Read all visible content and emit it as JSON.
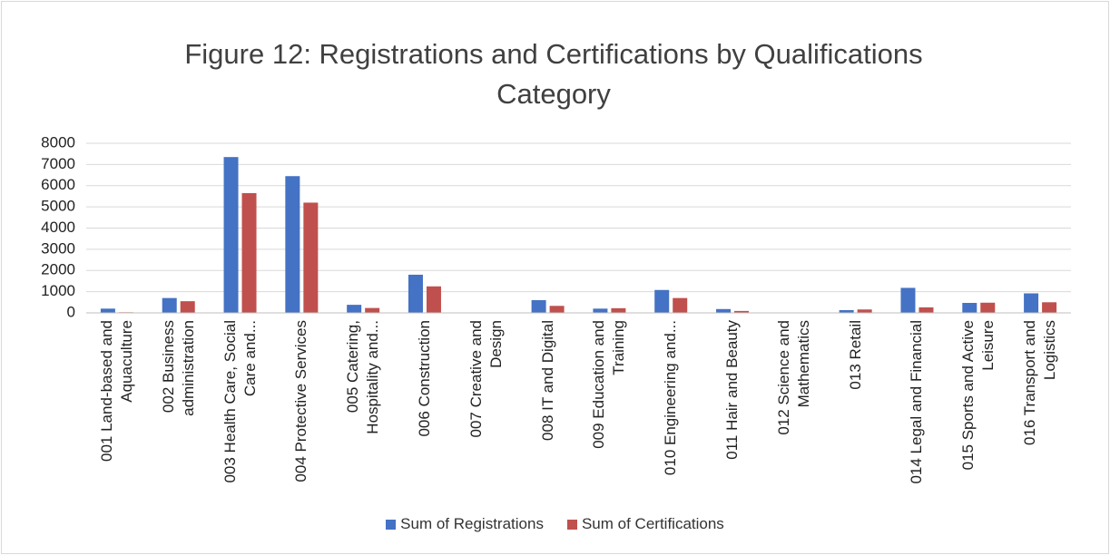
{
  "chart_data": {
    "type": "bar",
    "title": "Figure 12: Registrations and Certifications by Qualifications Category",
    "categories": [
      "001 Land-based and Aquaculture",
      "002 Business administration",
      "003 Health Care, Social Care and...",
      "004 Protective Services",
      "005 Catering, Hospitality and...",
      "006 Construction",
      "007 Creative and Design",
      "008 IT and Digital",
      "009 Education and Training",
      "010 Engineering and...",
      "011 Hair and Beauty",
      "012 Science and Mathematics",
      "013 Retail",
      "014 Legal and Financial",
      "015 Sports and Active Leisure",
      "016 Transport and Logistics"
    ],
    "series": [
      {
        "name": "Sum of Registrations",
        "color": "#4472c4",
        "values": [
          200,
          700,
          7350,
          6450,
          380,
          1800,
          10,
          600,
          200,
          1080,
          180,
          0,
          130,
          1180,
          470,
          920
        ]
      },
      {
        "name": "Sum of Certifications",
        "color": "#c0504d",
        "values": [
          30,
          550,
          5650,
          5200,
          230,
          1250,
          5,
          330,
          220,
          700,
          90,
          0,
          160,
          260,
          480,
          500
        ]
      }
    ],
    "ylim": [
      0,
      8000
    ],
    "yticks": [
      0,
      1000,
      2000,
      3000,
      4000,
      5000,
      6000,
      7000,
      8000
    ],
    "grid": true,
    "legend": "bottom"
  }
}
